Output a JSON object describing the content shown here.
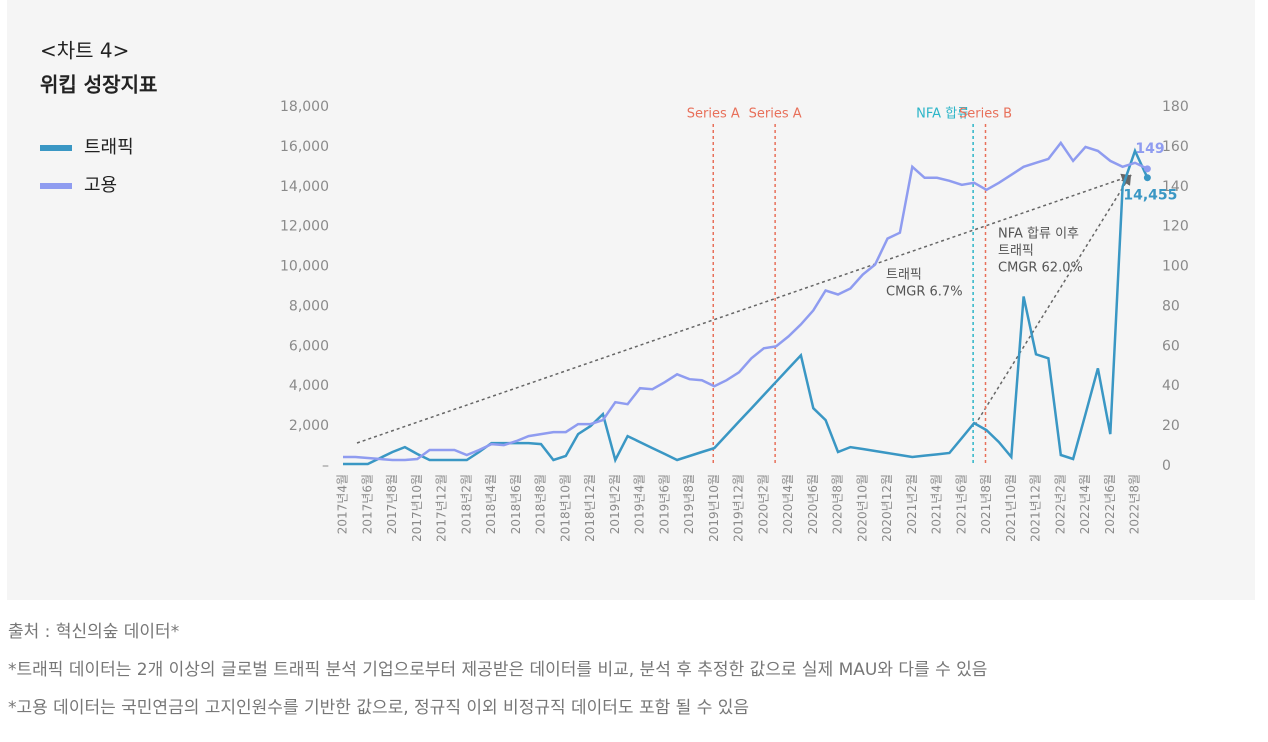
{
  "chart_data": {
    "type": "line",
    "title": "<차트 4>",
    "subtitle": "위킵 성장지표",
    "categories": [
      "2017년4월",
      null,
      "2017년6월",
      null,
      "2017년8월",
      null,
      "2017년10월",
      null,
      "2017년12월",
      null,
      "2018년2월",
      null,
      "2018년4월",
      null,
      "2018년6월",
      null,
      "2018년8월",
      null,
      "2018년10월",
      null,
      "2018년12월",
      null,
      "2019년2월",
      null,
      "2019년4월",
      null,
      "2019년6월",
      null,
      "2019년8월",
      null,
      "2019년10월",
      null,
      "2019년12월",
      null,
      "2020년2월",
      null,
      "2020년4월",
      null,
      "2020년6월",
      null,
      "2020년8월",
      null,
      "2020년10월",
      null,
      "2020년12월",
      null,
      "2021년2월",
      null,
      "2021년4월",
      null,
      "2021년6월",
      null,
      "2021년8월",
      null,
      "2021년10월",
      null,
      "2021년12월",
      null,
      "2022년2월",
      null,
      "2022년4월",
      null,
      "2022년6월",
      null,
      "2022년8월",
      null
    ],
    "series": [
      {
        "name": "트래픽",
        "color": "#3a97c4",
        "values": [
          100,
          100,
          100,
          400,
          700,
          950,
          600,
          300,
          300,
          300,
          300,
          700,
          1150,
          1150,
          1150,
          1150,
          1100,
          300,
          500,
          1600,
          2000,
          2600,
          300,
          1500,
          1200,
          900,
          600,
          300,
          500,
          700,
          900,
          1560,
          2230,
          2890,
          3560,
          4220,
          4890,
          5550,
          2900,
          2300,
          700,
          950,
          850,
          750,
          650,
          550,
          450,
          520,
          580,
          650,
          1400,
          2150,
          1800,
          1200,
          450,
          8500,
          5600,
          5400,
          550,
          350,
          2600,
          4900,
          1600,
          14000,
          15800,
          14455
        ],
        "value_labels": {
          "65": "14,455"
        }
      },
      {
        "name": "고용",
        "color": "#8f9cf0",
        "axis": "y2",
        "values": [
          4.5,
          4.5,
          4,
          3.5,
          3,
          3,
          3.5,
          8,
          8,
          8,
          5.5,
          8,
          11,
          10.5,
          12.5,
          15,
          16,
          17,
          17,
          21,
          21,
          23,
          32,
          31,
          39,
          38.5,
          42,
          46,
          43.5,
          43,
          40,
          43,
          47,
          54,
          59,
          60,
          65,
          71,
          78,
          88,
          86,
          89,
          96,
          101,
          114,
          117,
          150,
          144.5,
          144.5,
          143,
          141,
          142,
          138.5,
          142,
          146,
          150,
          152,
          154,
          162,
          153,
          160,
          158,
          153,
          150,
          152,
          149
        ]
      }
    ],
    "ylim": [
      0,
      18000
    ],
    "yticks": [
      {
        "value": 0,
        "label": "–"
      },
      {
        "value": 2000,
        "label": "2,000"
      },
      {
        "value": 4000,
        "label": "4,000"
      },
      {
        "value": 6000,
        "label": "6,000"
      },
      {
        "value": 8000,
        "label": "8,000"
      },
      {
        "value": 10000,
        "label": "10,000"
      },
      {
        "value": 12000,
        "label": "12,000"
      },
      {
        "value": 14000,
        "label": "14,000"
      },
      {
        "value": 16000,
        "label": "16,000"
      },
      {
        "value": 18000,
        "label": "18,000"
      }
    ],
    "y2lim": [
      0,
      180
    ],
    "y2ticks": [
      0,
      20,
      40,
      60,
      80,
      100,
      120,
      140,
      160,
      180
    ],
    "markers": [
      {
        "label": "Series A",
        "color": "#e8705a"
      },
      {
        "label": "Series A",
        "color": "#e8705a"
      },
      {
        "label": "NFA 합류",
        "color": "#2cb5c8"
      },
      {
        "label": "Series B",
        "color": "#e8705a"
      }
    ],
    "annotations": [
      "트래픽",
      "CMGR 6.7%",
      "NFA 합류 이후",
      "트래픽",
      "CMGR 62.0%"
    ],
    "notes": [
      "출처 : 혁신의숲 데이터*",
      "*트래픽 데이터는 2개 이상의 글로벌 트래픽 분석 기업으로부터 제공받은 데이터를 비교, 분석 후 추정한 값으로 실제 MAU와 다를 수 있음",
      "*고용 데이터는 국민연금의 고지인원수를 기반한 값으로, 정규직 이외 비정규직 데이터도 포함 될 수 있음"
    ]
  }
}
